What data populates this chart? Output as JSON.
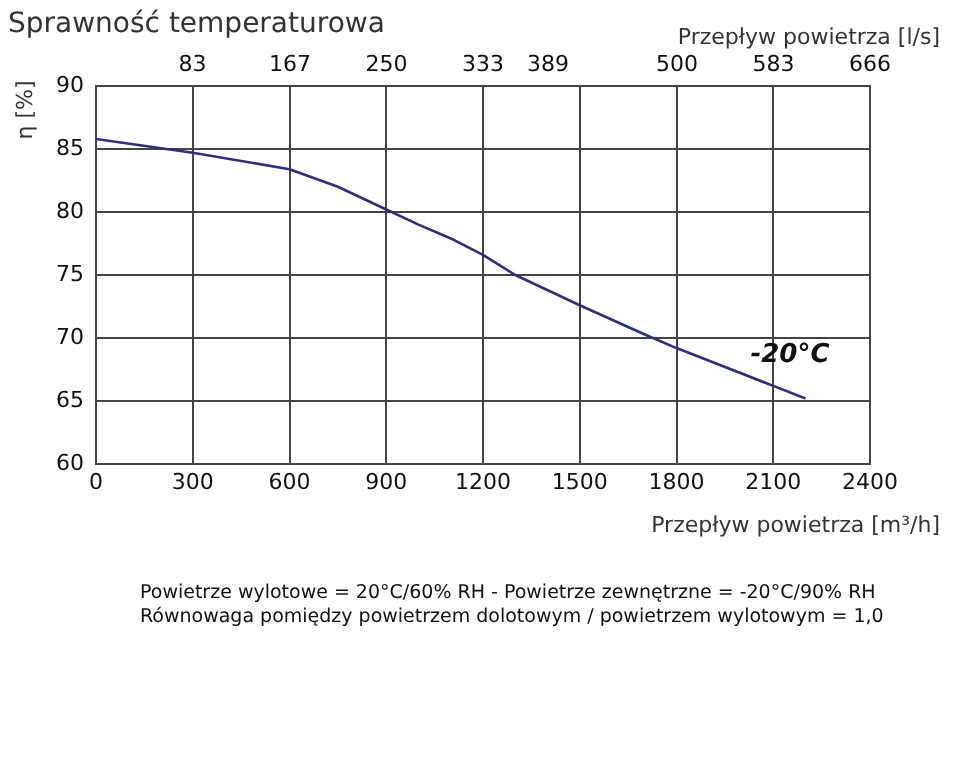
{
  "chart_data": {
    "type": "line",
    "title": "Sprawność temperaturowa",
    "xlabel": "Przepływ powietrza [m³/h]",
    "x2label": "Przepływ powietrza [l/s]",
    "ylabel": "η [%]",
    "series": [
      {
        "name": "-20°C",
        "color": "#2b2f7e",
        "x": [
          0,
          300,
          600,
          750,
          900,
          1000,
          1100,
          1200,
          1300,
          1500,
          1700,
          1800,
          2100,
          2200
        ],
        "values": [
          85.8,
          84.7,
          83.4,
          82.0,
          80.2,
          79.0,
          77.9,
          76.6,
          75.0,
          72.6,
          70.3,
          69.2,
          66.2,
          65.2
        ]
      }
    ],
    "xlim": [
      0,
      2400
    ],
    "xticks": [
      0,
      300,
      600,
      900,
      1200,
      1500,
      1800,
      2100,
      2400
    ],
    "x2lim": [
      0,
      666
    ],
    "x2ticks": [
      83,
      167,
      250,
      333,
      389,
      500,
      583,
      666
    ],
    "ylim": [
      60,
      90
    ],
    "yticks": [
      60,
      65,
      70,
      75,
      80,
      85,
      90
    ],
    "grid": true,
    "legend": false,
    "marker": "none",
    "line_style": "solid",
    "annotations": [
      "Powietrze wylotowe = 20°C/60% RH - Powietrze zewnętrzne = -20°C/90% RH",
      "Równowaga pomiędzy powietrzem dolotowym / powietrzem wylotowym = 1,0"
    ]
  }
}
